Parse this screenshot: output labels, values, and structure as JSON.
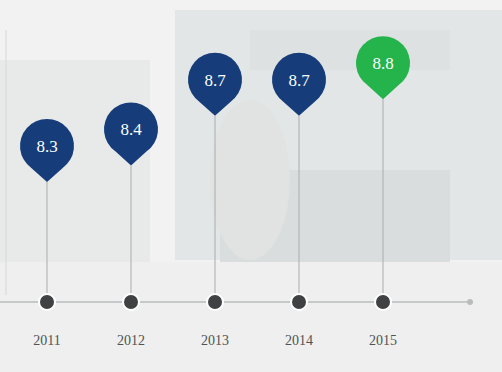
{
  "chart_data": {
    "type": "pin",
    "categories": [
      "2011",
      "2012",
      "2013",
      "2014",
      "2015"
    ],
    "values": [
      8.3,
      8.4,
      8.7,
      8.7,
      8.8
    ],
    "colors": [
      "#163d7a",
      "#163d7a",
      "#163d7a",
      "#163d7a",
      "#25b34b"
    ],
    "ylim": [
      7.4,
      9.0
    ],
    "data_labels": true,
    "tick_labels": "x"
  }
}
